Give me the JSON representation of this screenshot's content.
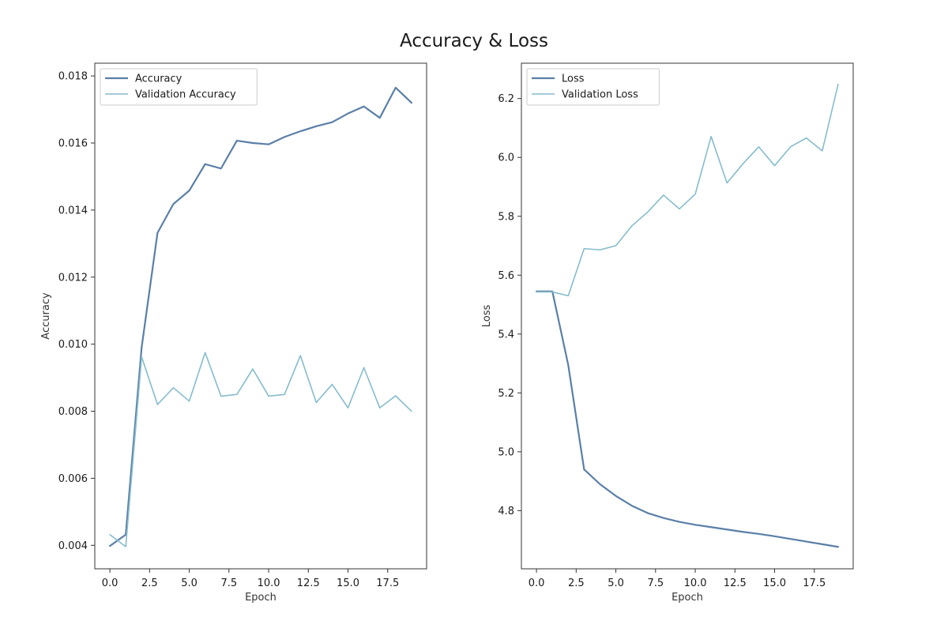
{
  "figure": {
    "title": "Accuracy & Loss"
  },
  "chart_data": [
    {
      "type": "line",
      "xlabel": "Epoch",
      "ylabel": "Accuracy",
      "xlim": [
        -0.95,
        19.95
      ],
      "ylim": [
        0.0033,
        0.01838
      ],
      "xticks": [
        0.0,
        2.5,
        5.0,
        7.5,
        10.0,
        12.5,
        15.0,
        17.5
      ],
      "xtick_labels": [
        "0.0",
        "2.5",
        "5.0",
        "7.5",
        "10.0",
        "12.5",
        "15.0",
        "17.5"
      ],
      "yticks": [
        0.004,
        0.006,
        0.008,
        0.01,
        0.012,
        0.014,
        0.016,
        0.018
      ],
      "ytick_labels": [
        "0.004",
        "0.006",
        "0.008",
        "0.010",
        "0.012",
        "0.014",
        "0.016",
        "0.018"
      ],
      "grid": false,
      "legend": "upper-left",
      "x": [
        0,
        1,
        2,
        3,
        4,
        5,
        6,
        7,
        8,
        9,
        10,
        11,
        12,
        13,
        14,
        15,
        16,
        17,
        18,
        19
      ],
      "series": [
        {
          "name": "Accuracy",
          "color": "#5a7fa8",
          "width": 2.2,
          "values": [
            0.00398,
            0.00432,
            0.0099,
            0.01332,
            0.01418,
            0.01458,
            0.01537,
            0.01524,
            0.01607,
            0.016,
            0.01596,
            0.01618,
            0.01635,
            0.0165,
            0.01662,
            0.01688,
            0.01709,
            0.01675,
            0.01765,
            0.0172
          ]
        },
        {
          "name": "Validation Accuracy",
          "color": "#86bccc",
          "width": 1.6,
          "values": [
            0.00432,
            0.00396,
            0.00962,
            0.0082,
            0.0087,
            0.0083,
            0.00975,
            0.00845,
            0.0085,
            0.00926,
            0.00845,
            0.0085,
            0.00966,
            0.00826,
            0.0088,
            0.0081,
            0.0093,
            0.0081,
            0.00846,
            0.008
          ]
        }
      ]
    },
    {
      "type": "line",
      "xlabel": "Epoch",
      "ylabel": "Loss",
      "xlim": [
        -0.95,
        19.95
      ],
      "ylim": [
        4.6025,
        6.32
      ],
      "xticks": [
        0.0,
        2.5,
        5.0,
        7.5,
        10.0,
        12.5,
        15.0,
        17.5
      ],
      "xtick_labels": [
        "0.0",
        "2.5",
        "5.0",
        "7.5",
        "10.0",
        "12.5",
        "15.0",
        "17.5"
      ],
      "yticks": [
        4.8,
        5.0,
        5.2,
        5.4,
        5.6,
        5.8,
        6.0,
        6.2
      ],
      "ytick_labels": [
        "4.8",
        "5.0",
        "5.2",
        "5.4",
        "5.6",
        "5.8",
        "6.0",
        "6.2"
      ],
      "grid": false,
      "legend": "upper-left",
      "x": [
        0,
        1,
        2,
        3,
        4,
        5,
        6,
        7,
        8,
        9,
        10,
        11,
        12,
        13,
        14,
        15,
        16,
        17,
        18,
        19
      ],
      "series": [
        {
          "name": "Loss",
          "color": "#5a7fa8",
          "width": 2.2,
          "values": [
            5.545,
            5.545,
            5.295,
            4.94,
            4.89,
            4.85,
            4.817,
            4.792,
            4.775,
            4.762,
            4.752,
            4.744,
            4.736,
            4.728,
            4.721,
            4.713,
            4.704,
            4.695,
            4.686,
            4.677
          ]
        },
        {
          "name": "Validation Loss",
          "color": "#86bccc",
          "width": 1.6,
          "values": [
            5.543,
            5.543,
            5.53,
            5.69,
            5.686,
            5.7,
            5.767,
            5.814,
            5.872,
            5.825,
            5.875,
            6.071,
            5.913,
            5.978,
            6.036,
            5.972,
            6.036,
            6.066,
            6.022,
            6.248
          ]
        }
      ]
    }
  ]
}
